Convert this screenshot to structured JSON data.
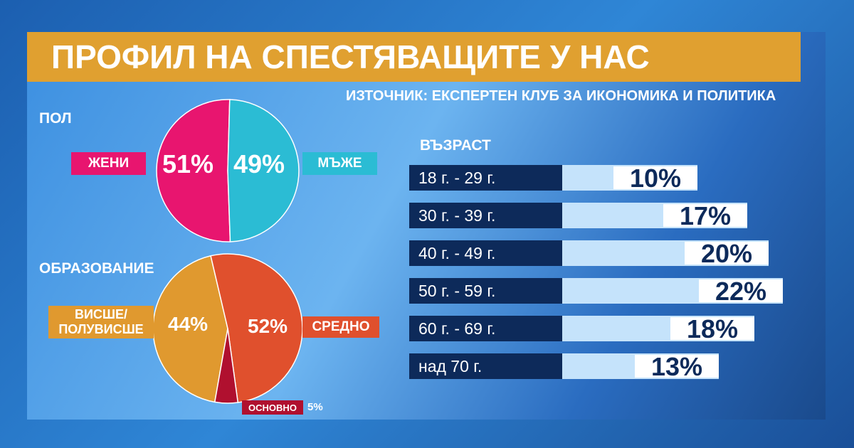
{
  "title": "ПРОФИЛ НА СПЕСТЯВАЩИТЕ У НАС",
  "source": "ИЗТОЧНИК: ЕКСПЕРТЕН КЛУБ ЗА ИКОНОМИКА И ПОЛИТИКА",
  "chart_data": [
    {
      "type": "pie",
      "title": "ПОЛ",
      "categories": [
        "ЖЕНИ",
        "МЪЖЕ"
      ],
      "values": [
        51,
        49
      ],
      "value_labels": [
        "51%",
        "49%"
      ],
      "colors": [
        "#e8156f",
        "#2bbcd4"
      ]
    },
    {
      "type": "pie",
      "title": "ОБРАЗОВАНИЕ",
      "categories": [
        "ВИСШЕ/ ПОЛУВИСШЕ",
        "СРЕДНО",
        "ОСНОВНО"
      ],
      "values": [
        44,
        52,
        5
      ],
      "value_labels": [
        "44%",
        "52%",
        "5%"
      ],
      "colors": [
        "#e0992f",
        "#e0502d",
        "#b0102f"
      ]
    },
    {
      "type": "bar",
      "title": "ВЪЗРАСТ",
      "categories": [
        "18 г. - 29 г.",
        "30 г. - 39 г.",
        "40 г. - 49 г.",
        "50 г. - 59 г.",
        "60 г. - 69 г.",
        "над 70 г."
      ],
      "values": [
        10,
        17,
        20,
        22,
        18,
        13
      ],
      "value_labels": [
        "10%",
        "17%",
        "20%",
        "22%",
        "18%",
        "13%"
      ],
      "color": "#c5e3fb"
    }
  ]
}
